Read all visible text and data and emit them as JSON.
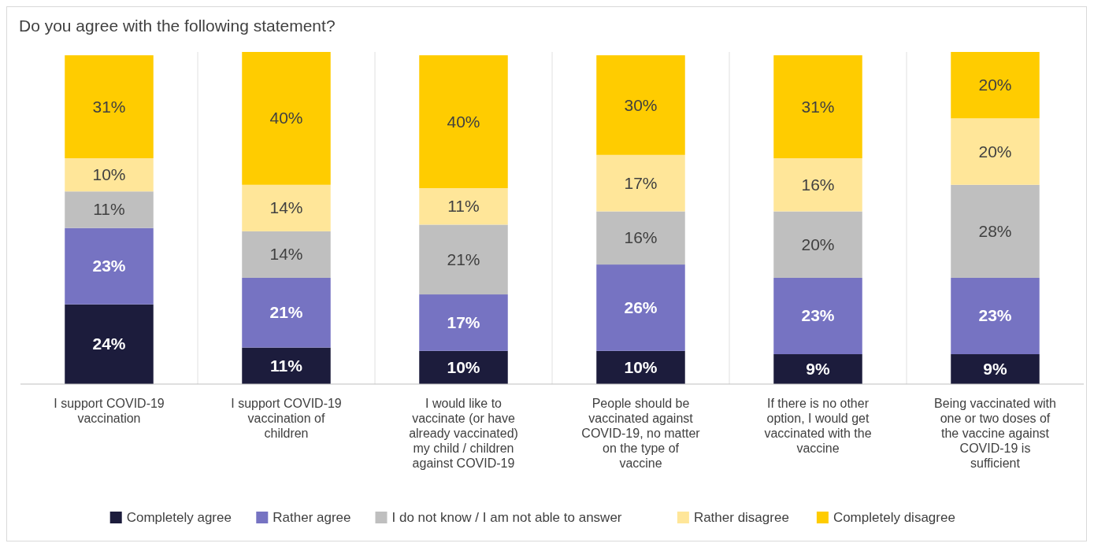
{
  "chart_data": {
    "type": "bar",
    "stacked": true,
    "title": "Do you agree with the following statement?",
    "categories": [
      "I support COVID-19 vaccination",
      "I support COVID-19 vaccination of children",
      "I would like to vaccinate (or have already vaccinated) my child / children against COVID-19",
      "People should be vaccinated against COVID-19, no matter on the type of vaccine",
      "If there is no other option, I would get vaccinated with the vaccine",
      "Being vaccinated with one or two doses of the vaccine against COVID-19 is sufficient"
    ],
    "series": [
      {
        "name": "Completely agree",
        "color": "#1c1c3c",
        "values": [
          24,
          11,
          10,
          10,
          9,
          9
        ],
        "value_labels": [
          "24%",
          "11%",
          "10%",
          "10%",
          "9%",
          "9%"
        ]
      },
      {
        "name": "Rather agree",
        "color": "#7673c2",
        "values": [
          23,
          21,
          17,
          26,
          23,
          23
        ],
        "value_labels": [
          "23%",
          "21%",
          "17%",
          "26%",
          "23%",
          "23%"
        ]
      },
      {
        "name": "I do not know / I am not able to answer",
        "color": "#bfbfbf",
        "values": [
          11,
          14,
          21,
          16,
          20,
          28
        ],
        "value_labels": [
          "11%",
          "14%",
          "21%",
          "16%",
          "20%",
          "28%"
        ]
      },
      {
        "name": "Rather disagree",
        "color": "#ffe699",
        "values": [
          10,
          14,
          11,
          17,
          16,
          20
        ],
        "value_labels": [
          "10%",
          "14%",
          "11%",
          "17%",
          "16%",
          "20%"
        ]
      },
      {
        "name": "Completely disagree",
        "color": "#ffcc00",
        "values": [
          31,
          40,
          40,
          30,
          31,
          20
        ],
        "value_labels": [
          "31%",
          "40%",
          "40%",
          "30%",
          "31%",
          "20%"
        ]
      }
    ],
    "legend": "bottom"
  }
}
